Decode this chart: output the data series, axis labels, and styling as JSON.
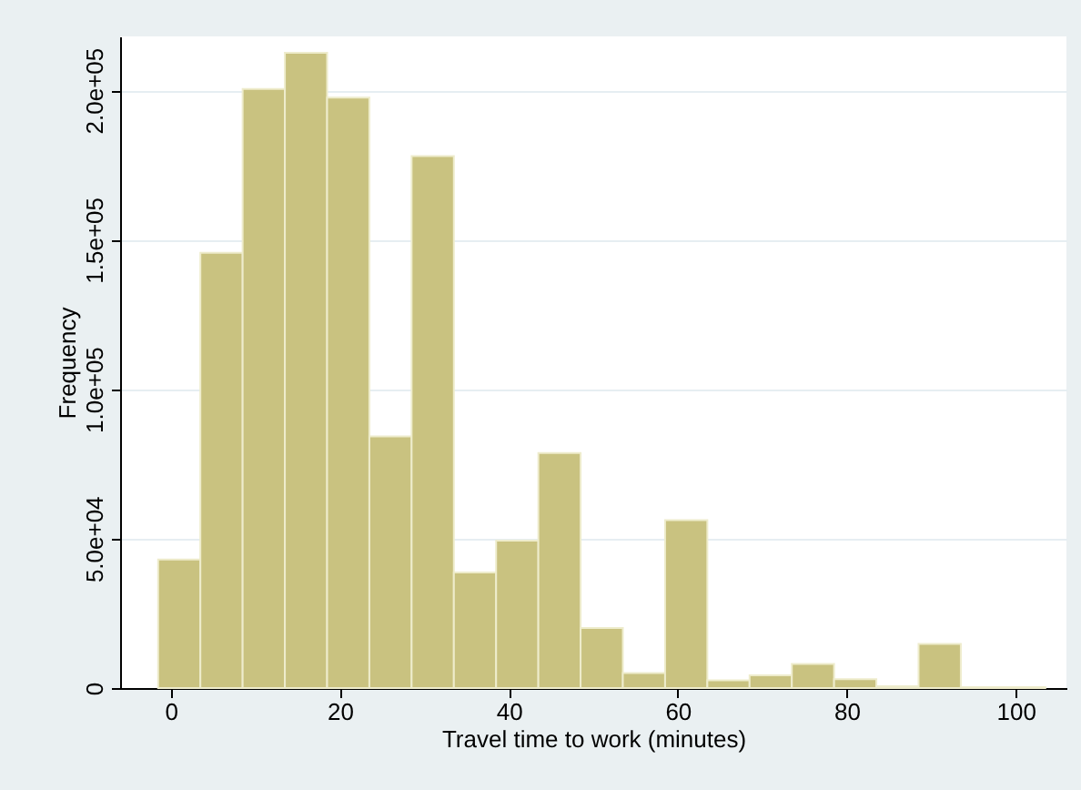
{
  "chart_data": {
    "type": "histogram",
    "xlabel": "Travel time to work (minutes)",
    "ylabel": "Frequency",
    "bins": [
      -1.5,
      3.5,
      8.5,
      13.5,
      18.5,
      23.5,
      28.5,
      33.5,
      38.5,
      43.5,
      48.5,
      53.5,
      58.5,
      63.5,
      68.5,
      73.5,
      78.5,
      83.5,
      88.5,
      93.5,
      98.5,
      103.5
    ],
    "values": [
      43000,
      145600,
      200400,
      212500,
      197500,
      84200,
      178000,
      38700,
      49300,
      78600,
      20100,
      5000,
      56200,
      2600,
      4300,
      8100,
      3000,
      600,
      14800,
      300,
      300
    ],
    "color": "#c9c280",
    "xlim": [
      -6,
      106
    ],
    "xticks": [
      0,
      20,
      40,
      60,
      80,
      100
    ],
    "ylim": [
      0,
      218000
    ],
    "yticks": [
      0,
      {
        "value": 50000,
        "label": "5.0e+04"
      },
      {
        "value": 100000,
        "label": "1.0e+05"
      },
      {
        "value": 150000,
        "label": "1.5e+05"
      },
      {
        "value": 200000,
        "label": "2.0e+05"
      }
    ],
    "grid": "y"
  }
}
